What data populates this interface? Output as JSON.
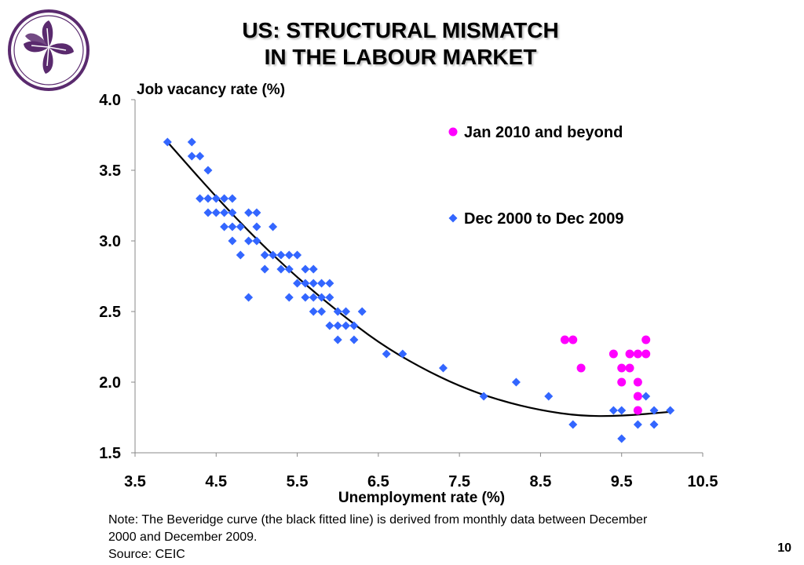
{
  "slide": {
    "title_line1": "US: STRUCTURAL MISMATCH",
    "title_line2": "IN THE LABOUR MARKET",
    "note_line1": "Note: The Beveridge curve (the black fitted line) is derived from monthly data between December",
    "note_line2": "2000 and December 2009.",
    "source": "Source: CEIC",
    "page_number": "10",
    "logo_icon": "bauhinia-flower-icon",
    "logo_color": "#5a2a6e"
  },
  "chart_data": {
    "type": "scatter",
    "title": "",
    "xlabel": "Unemployment rate (%)",
    "ylabel": "Job vacancy rate (%)",
    "xlim": [
      3.5,
      10.5
    ],
    "ylim": [
      1.5,
      4.0
    ],
    "xticks": [
      "3.5",
      "4.5",
      "5.5",
      "6.5",
      "7.5",
      "8.5",
      "9.5",
      "10.5"
    ],
    "yticks": [
      "1.5",
      "2.0",
      "2.5",
      "3.0",
      "3.5",
      "4.0"
    ],
    "grid": false,
    "legend_position": "top-right",
    "series": [
      {
        "name": "Jan 2010 and beyond",
        "marker": "circle",
        "color": "#ff00ff",
        "points": [
          [
            8.8,
            2.3
          ],
          [
            8.9,
            2.3
          ],
          [
            9.0,
            2.1
          ],
          [
            9.4,
            2.2
          ],
          [
            9.5,
            2.1
          ],
          [
            9.5,
            2.0
          ],
          [
            9.6,
            2.2
          ],
          [
            9.6,
            2.1
          ],
          [
            9.7,
            2.2
          ],
          [
            9.8,
            2.2
          ],
          [
            9.8,
            2.3
          ],
          [
            9.7,
            2.0
          ],
          [
            9.7,
            1.9
          ],
          [
            9.7,
            1.8
          ]
        ]
      },
      {
        "name": "Dec 2000 to Dec 2009",
        "marker": "diamond",
        "color": "#3366ff",
        "points": [
          [
            3.9,
            3.7
          ],
          [
            4.2,
            3.7
          ],
          [
            4.2,
            3.6
          ],
          [
            4.3,
            3.6
          ],
          [
            4.4,
            3.5
          ],
          [
            4.3,
            3.3
          ],
          [
            4.4,
            3.3
          ],
          [
            4.5,
            3.3
          ],
          [
            4.6,
            3.3
          ],
          [
            4.7,
            3.3
          ],
          [
            4.4,
            3.2
          ],
          [
            4.5,
            3.2
          ],
          [
            4.6,
            3.2
          ],
          [
            4.7,
            3.2
          ],
          [
            4.9,
            3.2
          ],
          [
            5.0,
            3.2
          ],
          [
            4.6,
            3.1
          ],
          [
            4.7,
            3.1
          ],
          [
            4.8,
            3.1
          ],
          [
            5.0,
            3.1
          ],
          [
            5.2,
            3.1
          ],
          [
            4.7,
            3.0
          ],
          [
            4.9,
            3.0
          ],
          [
            5.0,
            3.0
          ],
          [
            4.8,
            2.9
          ],
          [
            5.1,
            2.9
          ],
          [
            5.2,
            2.9
          ],
          [
            5.3,
            2.9
          ],
          [
            5.4,
            2.9
          ],
          [
            5.5,
            2.9
          ],
          [
            5.1,
            2.8
          ],
          [
            5.3,
            2.8
          ],
          [
            5.4,
            2.8
          ],
          [
            5.6,
            2.8
          ],
          [
            5.7,
            2.8
          ],
          [
            5.5,
            2.7
          ],
          [
            5.6,
            2.7
          ],
          [
            5.7,
            2.7
          ],
          [
            5.8,
            2.7
          ],
          [
            5.9,
            2.7
          ],
          [
            4.9,
            2.6
          ],
          [
            5.4,
            2.6
          ],
          [
            5.6,
            2.6
          ],
          [
            5.7,
            2.6
          ],
          [
            5.8,
            2.6
          ],
          [
            5.9,
            2.6
          ],
          [
            5.7,
            2.5
          ],
          [
            5.8,
            2.5
          ],
          [
            6.0,
            2.5
          ],
          [
            6.1,
            2.5
          ],
          [
            6.3,
            2.5
          ],
          [
            5.9,
            2.4
          ],
          [
            6.0,
            2.4
          ],
          [
            6.1,
            2.4
          ],
          [
            6.2,
            2.4
          ],
          [
            6.0,
            2.3
          ],
          [
            6.2,
            2.3
          ],
          [
            6.6,
            2.2
          ],
          [
            6.8,
            2.2
          ],
          [
            7.3,
            2.1
          ],
          [
            8.2,
            2.0
          ],
          [
            7.8,
            1.9
          ],
          [
            8.6,
            1.9
          ],
          [
            9.8,
            1.9
          ],
          [
            9.4,
            1.8
          ],
          [
            9.5,
            1.8
          ],
          [
            9.9,
            1.8
          ],
          [
            10.1,
            1.8
          ],
          [
            8.9,
            1.7
          ],
          [
            9.7,
            1.7
          ],
          [
            9.9,
            1.7
          ],
          [
            9.5,
            1.6
          ]
        ]
      }
    ],
    "fitted_curve": {
      "color": "#000000",
      "points": [
        [
          3.9,
          3.7
        ],
        [
          4.5,
          3.31
        ],
        [
          5.0,
          3.01
        ],
        [
          5.5,
          2.74
        ],
        [
          6.0,
          2.5
        ],
        [
          6.5,
          2.28
        ],
        [
          7.0,
          2.11
        ],
        [
          7.5,
          1.97
        ],
        [
          8.0,
          1.87
        ],
        [
          8.5,
          1.8
        ],
        [
          9.0,
          1.76
        ],
        [
          9.5,
          1.76
        ],
        [
          10.1,
          1.79
        ]
      ]
    }
  }
}
